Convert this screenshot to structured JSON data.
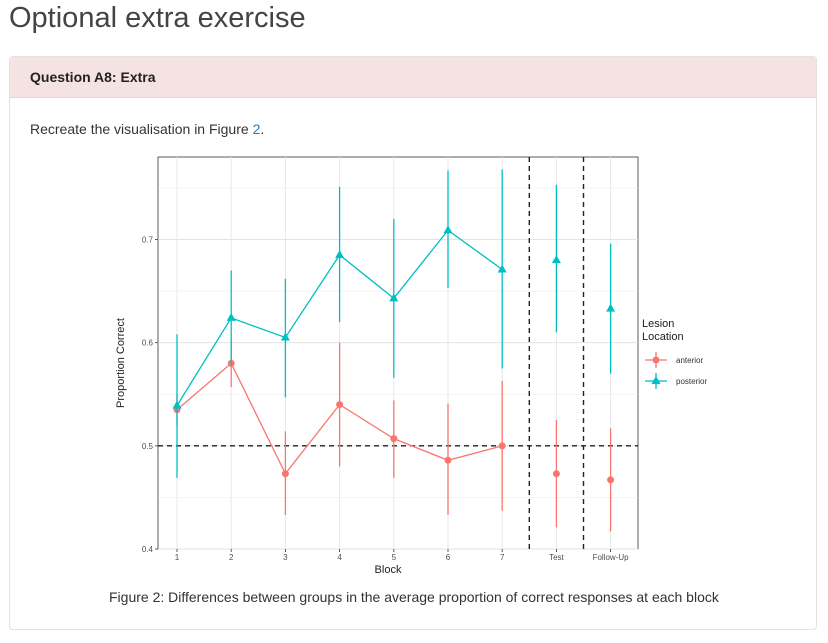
{
  "page": {
    "title": "Optional extra exercise"
  },
  "question": {
    "header": "Question A8: Extra",
    "text_before": "Recreate the visualisation in Figure ",
    "link": "2",
    "text_after": "."
  },
  "figure": {
    "caption": "Figure 2: Differences between groups in the average proportion of correct responses at each block"
  },
  "colors": {
    "anterior": "#f8766d",
    "posterior": "#00bfc4",
    "reference": "#222222"
  },
  "chart_data": {
    "type": "line",
    "xlabel": "Block",
    "ylabel": "Proportion Correct",
    "categories": [
      "1",
      "2",
      "3",
      "4",
      "5",
      "6",
      "7",
      "Test",
      "Follow-Up"
    ],
    "ylim": [
      0.4,
      0.78
    ],
    "yticks": [
      0.4,
      0.5,
      0.6,
      0.7
    ],
    "ytick_labels": [
      "0.4",
      "0.5",
      "0.6",
      "0.7"
    ],
    "grid": true,
    "legend": {
      "title_line1": "Lesion",
      "title_line2": "Location",
      "position": "right"
    },
    "reference_line_y": 0.5,
    "separators_between": [
      [
        7,
        "Test"
      ],
      [
        "Test",
        "Follow-Up"
      ]
    ],
    "series": [
      {
        "name": "anterior",
        "marker": "circle",
        "connected_through": "7",
        "values": [
          0.535,
          0.58,
          0.473,
          0.54,
          0.507,
          0.486,
          0.5,
          0.473,
          0.467
        ],
        "lower": [
          0.52,
          0.557,
          0.433,
          0.48,
          0.469,
          0.433,
          0.437,
          0.421,
          0.417
        ],
        "upper": [
          0.55,
          0.603,
          0.514,
          0.6,
          0.544,
          0.541,
          0.563,
          0.525,
          0.517
        ]
      },
      {
        "name": "posterior",
        "marker": "triangle",
        "connected_through": "7",
        "values": [
          0.539,
          0.624,
          0.605,
          0.685,
          0.643,
          0.709,
          0.671,
          0.68,
          0.633
        ],
        "lower": [
          0.469,
          0.578,
          0.547,
          0.62,
          0.566,
          0.653,
          0.575,
          0.61,
          0.57
        ],
        "upper": [
          0.608,
          0.67,
          0.662,
          0.751,
          0.72,
          0.767,
          0.768,
          0.753,
          0.696
        ]
      }
    ]
  }
}
